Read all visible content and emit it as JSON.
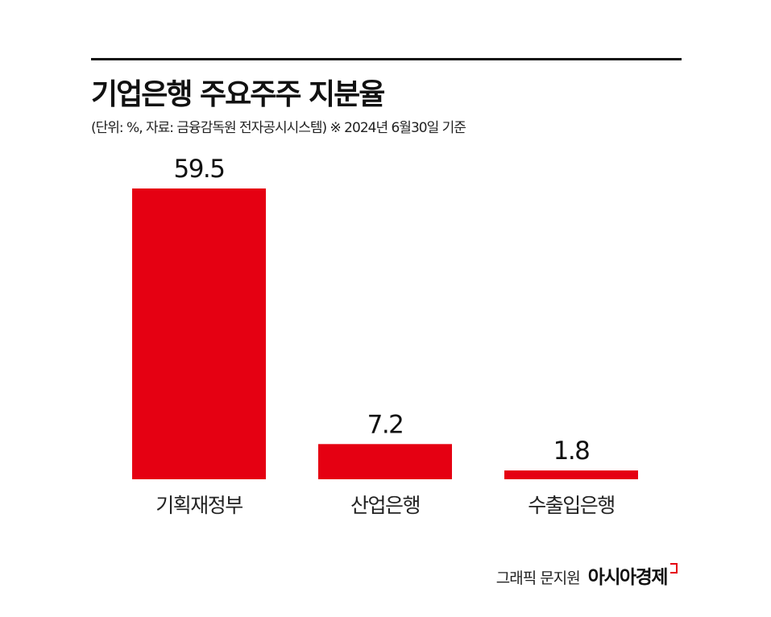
{
  "header": {
    "title": "기업은행 주요주주 지분율",
    "subtitle": "(단위: %, 자료: 금융감독원 전자공시시스템)  ※ 2024년 6월30일 기준"
  },
  "chart_data": {
    "type": "bar",
    "title": "기업은행 주요주주 지분율",
    "subtitle": "(단위: %, 자료: 금융감독원 전자공시시스템)  ※ 2024년 6월30일 기준",
    "categories": [
      "기획재정부",
      "산업은행",
      "수출입은행"
    ],
    "values": [
      59.5,
      7.2,
      1.8
    ],
    "value_labels": [
      "59.5",
      "7.2",
      "1.8"
    ],
    "ylim": [
      0,
      59.5
    ],
    "grid": false,
    "legend": "none",
    "bar_color": "#e50012"
  },
  "footer": {
    "credit": "그래픽 문지원",
    "brand": "아시아경제"
  }
}
